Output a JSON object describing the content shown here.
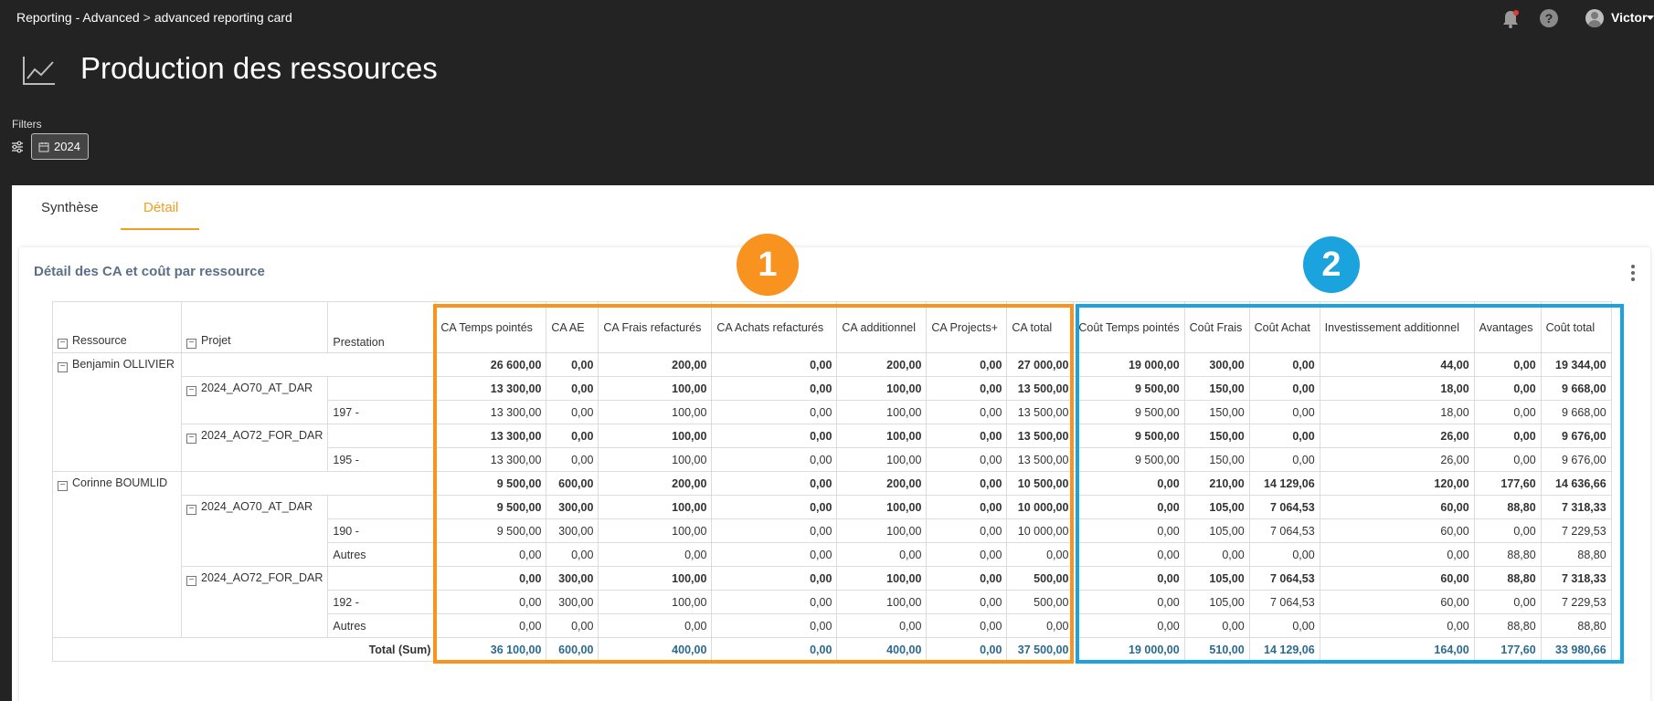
{
  "breadcrumb": {
    "parent": "Reporting - Advanced",
    "separator": ">",
    "current": "advanced reporting card"
  },
  "user": {
    "name": "Victor"
  },
  "page": {
    "title": "Production des ressources"
  },
  "filters": {
    "label": "Filters",
    "year": "2024"
  },
  "tabs": [
    {
      "label": "Synthèse"
    },
    {
      "label": "Détail"
    }
  ],
  "card": {
    "title": "Détail des CA et coût par ressource"
  },
  "badges": {
    "one": "1",
    "two": "2"
  },
  "table": {
    "row_headers": [
      "Ressource",
      "Projet",
      "Prestation"
    ],
    "columns": [
      "CA Temps pointés",
      "CA AE",
      "CA Frais refacturés",
      "CA Achats refacturés",
      "CA additionnel",
      "CA Projects+",
      "CA total",
      "Coût Temps pointés",
      "Coût Frais",
      "Coût Achat",
      "Investissement additionnel",
      "Avantages",
      "Coût total"
    ],
    "rows": [
      {
        "resource": "Benjamin OLLIVIER",
        "project": "",
        "prestation": "",
        "bold": true,
        "values": [
          "26 600,00",
          "0,00",
          "200,00",
          "0,00",
          "200,00",
          "0,00",
          "27 000,00",
          "19 000,00",
          "300,00",
          "0,00",
          "44,00",
          "0,00",
          "19 344,00"
        ]
      },
      {
        "resource": "",
        "project": "2024_AO70_AT_DAR",
        "prestation": "",
        "bold": true,
        "values": [
          "13 300,00",
          "0,00",
          "100,00",
          "0,00",
          "100,00",
          "0,00",
          "13 500,00",
          "9 500,00",
          "150,00",
          "0,00",
          "18,00",
          "0,00",
          "9 668,00"
        ]
      },
      {
        "resource": "",
        "project": "",
        "prestation": "197 -",
        "bold": false,
        "values": [
          "13 300,00",
          "0,00",
          "100,00",
          "0,00",
          "100,00",
          "0,00",
          "13 500,00",
          "9 500,00",
          "150,00",
          "0,00",
          "18,00",
          "0,00",
          "9 668,00"
        ]
      },
      {
        "resource": "",
        "project": "2024_AO72_FOR_DAR",
        "prestation": "",
        "bold": true,
        "values": [
          "13 300,00",
          "0,00",
          "100,00",
          "0,00",
          "100,00",
          "0,00",
          "13 500,00",
          "9 500,00",
          "150,00",
          "0,00",
          "26,00",
          "0,00",
          "9 676,00"
        ]
      },
      {
        "resource": "",
        "project": "",
        "prestation": "195 -",
        "bold": false,
        "values": [
          "13 300,00",
          "0,00",
          "100,00",
          "0,00",
          "100,00",
          "0,00",
          "13 500,00",
          "9 500,00",
          "150,00",
          "0,00",
          "26,00",
          "0,00",
          "9 676,00"
        ]
      },
      {
        "resource": "Corinne BOUMLID",
        "project": "",
        "prestation": "",
        "bold": true,
        "values": [
          "9 500,00",
          "600,00",
          "200,00",
          "0,00",
          "200,00",
          "0,00",
          "10 500,00",
          "0,00",
          "210,00",
          "14 129,06",
          "120,00",
          "177,60",
          "14 636,66"
        ]
      },
      {
        "resource": "",
        "project": "2024_AO70_AT_DAR",
        "prestation": "",
        "bold": true,
        "values": [
          "9 500,00",
          "300,00",
          "100,00",
          "0,00",
          "100,00",
          "0,00",
          "10 000,00",
          "0,00",
          "105,00",
          "7 064,53",
          "60,00",
          "88,80",
          "7 318,33"
        ]
      },
      {
        "resource": "",
        "project": "",
        "prestation": "190 -",
        "bold": false,
        "values": [
          "9 500,00",
          "300,00",
          "100,00",
          "0,00",
          "100,00",
          "0,00",
          "10 000,00",
          "0,00",
          "105,00",
          "7 064,53",
          "60,00",
          "0,00",
          "7 229,53"
        ]
      },
      {
        "resource": "",
        "project": "",
        "prestation": "Autres",
        "bold": false,
        "values": [
          "0,00",
          "0,00",
          "0,00",
          "0,00",
          "0,00",
          "0,00",
          "0,00",
          "0,00",
          "0,00",
          "0,00",
          "0,00",
          "88,80",
          "88,80"
        ]
      },
      {
        "resource": "",
        "project": "2024_AO72_FOR_DAR",
        "prestation": "",
        "bold": true,
        "values": [
          "0,00",
          "300,00",
          "100,00",
          "0,00",
          "100,00",
          "0,00",
          "500,00",
          "0,00",
          "105,00",
          "7 064,53",
          "60,00",
          "88,80",
          "7 318,33"
        ]
      },
      {
        "resource": "",
        "project": "",
        "prestation": "192 -",
        "bold": false,
        "values": [
          "0,00",
          "300,00",
          "100,00",
          "0,00",
          "100,00",
          "0,00",
          "500,00",
          "0,00",
          "105,00",
          "7 064,53",
          "60,00",
          "0,00",
          "7 229,53"
        ]
      },
      {
        "resource": "",
        "project": "",
        "prestation": "Autres",
        "bold": false,
        "values": [
          "0,00",
          "0,00",
          "0,00",
          "0,00",
          "0,00",
          "0,00",
          "0,00",
          "0,00",
          "0,00",
          "0,00",
          "0,00",
          "88,80",
          "88,80"
        ]
      }
    ],
    "total": {
      "label": "Total (Sum)",
      "values": [
        "36 100,00",
        "600,00",
        "400,00",
        "0,00",
        "400,00",
        "0,00",
        "37 500,00",
        "19 000,00",
        "510,00",
        "14 129,06",
        "164,00",
        "177,60",
        "33 980,66"
      ]
    }
  },
  "colors": {
    "accent_orange": "#f7931e",
    "accent_blue": "#1aa3dc",
    "tab_active": "#f0a020",
    "total_text": "#2b6a8f"
  }
}
